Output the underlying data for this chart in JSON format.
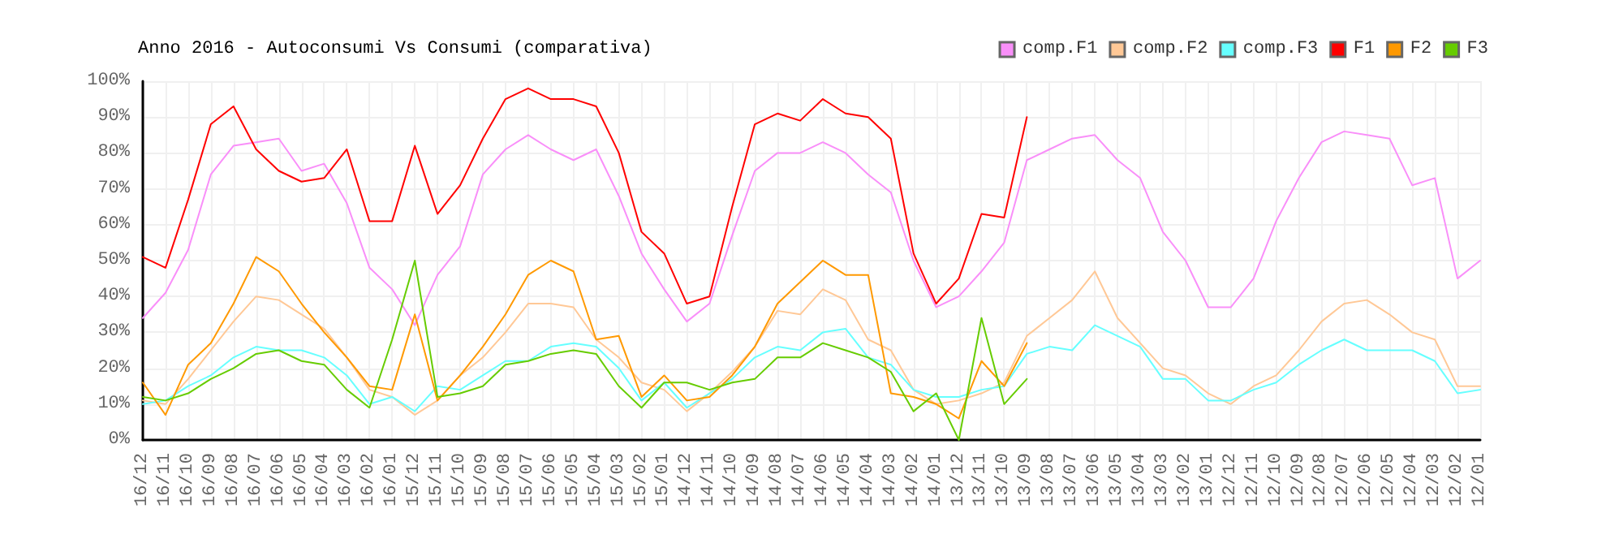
{
  "chart_data": {
    "type": "line",
    "title": "Anno 2016 - Autoconsumi Vs Consumi (comparativa)",
    "categories": [
      "16/12",
      "16/11",
      "16/10",
      "16/09",
      "16/08",
      "16/07",
      "16/06",
      "16/05",
      "16/04",
      "16/03",
      "16/02",
      "16/01",
      "15/12",
      "15/11",
      "15/10",
      "15/09",
      "15/08",
      "15/07",
      "15/06",
      "15/05",
      "15/04",
      "15/03",
      "15/02",
      "15/01",
      "14/12",
      "14/11",
      "14/10",
      "14/09",
      "14/08",
      "14/07",
      "14/06",
      "14/05",
      "14/04",
      "14/03",
      "14/02",
      "14/01",
      "13/12",
      "13/11",
      "13/10",
      "13/09",
      "13/08",
      "13/07",
      "13/06",
      "13/05",
      "13/04",
      "13/03",
      "13/02",
      "13/01",
      "12/12",
      "12/11",
      "12/10",
      "12/09",
      "12/08",
      "12/07",
      "12/06",
      "12/05",
      "12/04",
      "12/03",
      "12/02",
      "12/01"
    ],
    "series": [
      {
        "name": "comp.F1",
        "color": "#f98ff9",
        "values": [
          34,
          41,
          53,
          74,
          82,
          83,
          84,
          75,
          77,
          66,
          48,
          42,
          32,
          46,
          54,
          74,
          81,
          85,
          81,
          78,
          81,
          68,
          52,
          42,
          33,
          38,
          57,
          75,
          80,
          80,
          83,
          80,
          74,
          69,
          50,
          37,
          40,
          47,
          55,
          78,
          81,
          84,
          85,
          78,
          73,
          58,
          50,
          37,
          37,
          45,
          61,
          73,
          83,
          86,
          85,
          84,
          71,
          73,
          45,
          50
        ]
      },
      {
        "name": "comp.F2",
        "color": "#ffc896",
        "values": [
          11,
          10,
          17,
          25,
          33,
          40,
          39,
          35,
          31,
          23,
          14,
          12,
          7,
          11,
          18,
          23,
          30,
          38,
          38,
          37,
          28,
          23,
          16,
          14,
          8,
          13,
          19,
          26,
          36,
          35,
          42,
          39,
          28,
          25,
          14,
          10,
          11,
          13,
          16,
          29,
          34,
          39,
          47,
          34,
          27,
          20,
          18,
          13,
          10,
          15,
          18,
          25,
          33,
          38,
          39,
          35,
          30,
          28,
          15,
          15
        ]
      },
      {
        "name": "comp.F3",
        "color": "#66ffff",
        "values": [
          10,
          11,
          15,
          18,
          23,
          26,
          25,
          25,
          23,
          18,
          10,
          12,
          8,
          15,
          14,
          18,
          22,
          22,
          26,
          27,
          26,
          20,
          11,
          16,
          9,
          13,
          17,
          23,
          26,
          25,
          30,
          31,
          23,
          21,
          14,
          12,
          12,
          14,
          15,
          24,
          26,
          25,
          32,
          29,
          26,
          17,
          17,
          11,
          11,
          14,
          16,
          21,
          25,
          28,
          25,
          25,
          25,
          22,
          13,
          14
        ]
      },
      {
        "name": "F1",
        "color": "#ff0000",
        "values": [
          51,
          48,
          67,
          88,
          93,
          81,
          75,
          72,
          73,
          81,
          61,
          61,
          82,
          63,
          71,
          84,
          95,
          98,
          95,
          95,
          93,
          80,
          58,
          52,
          38,
          40,
          65,
          88,
          91,
          89,
          95,
          91,
          90,
          84,
          52,
          38,
          45,
          63,
          62,
          90,
          null,
          null,
          null,
          null,
          null,
          null,
          null,
          null,
          null,
          null,
          null,
          null,
          null,
          null,
          null,
          null,
          null,
          null,
          null,
          null
        ]
      },
      {
        "name": "F2",
        "color": "#ff9900",
        "values": [
          16,
          7,
          21,
          27,
          38,
          51,
          47,
          38,
          30,
          23,
          15,
          14,
          35,
          11,
          18,
          26,
          35,
          46,
          50,
          47,
          28,
          29,
          12,
          18,
          11,
          12,
          18,
          26,
          38,
          44,
          50,
          46,
          46,
          13,
          12,
          10,
          6,
          22,
          15,
          27,
          null,
          null,
          null,
          null,
          null,
          null,
          null,
          null,
          null,
          null,
          null,
          null,
          null,
          null,
          null,
          null,
          null,
          null,
          null,
          null
        ]
      },
      {
        "name": "F3",
        "color": "#66cc00",
        "values": [
          12,
          11,
          13,
          17,
          20,
          24,
          25,
          22,
          21,
          14,
          9,
          28,
          50,
          12,
          13,
          15,
          21,
          22,
          24,
          25,
          24,
          15,
          9,
          16,
          16,
          14,
          16,
          17,
          23,
          23,
          27,
          25,
          23,
          19,
          8,
          13,
          0,
          34,
          10,
          17,
          null,
          null,
          null,
          null,
          null,
          null,
          null,
          null,
          null,
          null,
          null,
          null,
          null,
          null,
          null,
          null,
          null,
          null,
          null,
          null
        ]
      }
    ],
    "ylim": [
      0,
      100
    ],
    "yticks": [
      {
        "value": 0,
        "label": "0%"
      },
      {
        "value": 10,
        "label": "10%"
      },
      {
        "value": 20,
        "label": "20%"
      },
      {
        "value": 30,
        "label": "30%"
      },
      {
        "value": 40,
        "label": "40%"
      },
      {
        "value": 50,
        "label": "50%"
      },
      {
        "value": 60,
        "label": "60%"
      },
      {
        "value": 70,
        "label": "70%"
      },
      {
        "value": 80,
        "label": "80%"
      },
      {
        "value": 90,
        "label": "90%"
      },
      {
        "value": 100,
        "label": "100%"
      }
    ],
    "grid": true,
    "legend": "top right",
    "marker": "none",
    "line_style": "solid"
  }
}
